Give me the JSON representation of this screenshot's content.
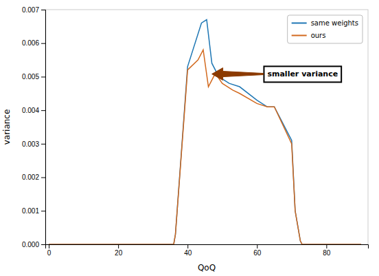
{
  "chart_data": {
    "type": "line",
    "xlabel": "QoQ",
    "ylabel": "variance",
    "xlim": [
      -1,
      92
    ],
    "ylim": [
      0,
      0.007
    ],
    "xticks": [
      0,
      20,
      40,
      60,
      80
    ],
    "yticks": [
      {
        "value": 0,
        "label": "0.000"
      },
      {
        "value": 0.001,
        "label": "0.001"
      },
      {
        "value": 0.002,
        "label": "0.002"
      },
      {
        "value": 0.003,
        "label": "0.003"
      },
      {
        "value": 0.004,
        "label": "0.004"
      },
      {
        "value": 0.005,
        "label": "0.005"
      },
      {
        "value": 0.006,
        "label": "0.006"
      },
      {
        "value": 0.007,
        "label": "0.007"
      }
    ],
    "grid": false,
    "legend": "upper right",
    "series": [
      {
        "name": "same weights",
        "color": "#1f77b4",
        "x": [
          0,
          36,
          36.5,
          40,
          44,
          45.5,
          47,
          49,
          52,
          55,
          60,
          63,
          65,
          70,
          71,
          72.5,
          73,
          90
        ],
        "values": [
          0,
          0,
          0.0003,
          0.0053,
          0.0066,
          0.0067,
          0.0054,
          0.005,
          0.0048,
          0.0047,
          0.0043,
          0.0041,
          0.0041,
          0.0031,
          0.001,
          0.0001,
          0.0,
          0.0
        ]
      },
      {
        "name": "ours",
        "color": "#d2691e",
        "x": [
          0,
          36,
          36.5,
          40,
          43,
          44.5,
          46,
          48,
          50,
          53,
          55,
          60,
          63,
          65,
          70,
          71,
          72.5,
          73,
          90
        ],
        "values": [
          0,
          0,
          0.0003,
          0.0052,
          0.0055,
          0.0058,
          0.0047,
          0.0051,
          0.0048,
          0.0046,
          0.0045,
          0.0042,
          0.0041,
          0.0041,
          0.003,
          0.001,
          0.0001,
          0.0,
          0.0
        ]
      }
    ],
    "annotations": [
      {
        "text": "smaller variance",
        "x": 63.0,
        "y": 0.00508,
        "target_x": 47.0,
        "target_y": 0.00508
      }
    ]
  }
}
